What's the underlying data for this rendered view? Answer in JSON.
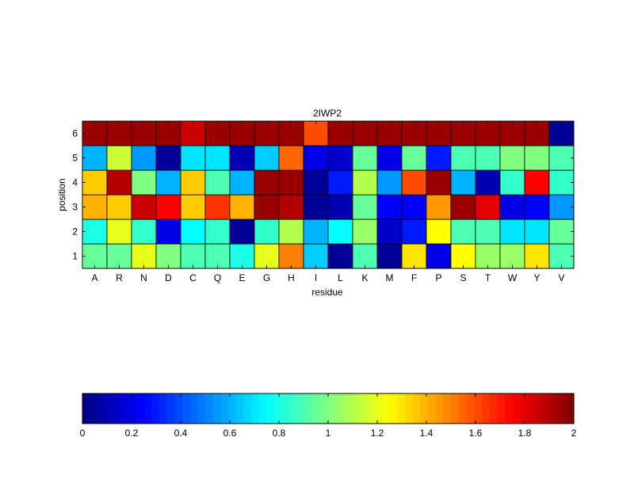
{
  "chart_data": {
    "type": "heatmap",
    "title": "2IWP2",
    "xlabel": "residue",
    "ylabel": "position",
    "x_categories": [
      "A",
      "R",
      "N",
      "D",
      "C",
      "Q",
      "E",
      "G",
      "H",
      "I",
      "L",
      "K",
      "M",
      "F",
      "P",
      "S",
      "T",
      "W",
      "Y",
      "V"
    ],
    "y_categories": [
      "1",
      "2",
      "3",
      "4",
      "5",
      "6"
    ],
    "colormap": "jet",
    "clim": [
      0,
      2
    ],
    "grid": true,
    "values": [
      [
        0.95,
        0.95,
        1.2,
        1.0,
        0.9,
        0.9,
        0.8,
        1.2,
        1.5,
        0.65,
        0.05,
        0.9,
        0.05,
        1.3,
        0.2,
        1.25,
        1.05,
        1.05,
        1.3,
        0.9
      ],
      [
        0.8,
        1.2,
        0.85,
        0.2,
        0.75,
        0.85,
        0.05,
        0.85,
        1.1,
        0.6,
        0.75,
        1.05,
        0.15,
        0.3,
        1.25,
        0.9,
        0.9,
        0.7,
        0.7,
        0.95
      ],
      [
        1.4,
        1.35,
        1.85,
        1.75,
        1.35,
        1.65,
        1.4,
        1.95,
        1.9,
        0.05,
        0.1,
        0.95,
        0.25,
        0.25,
        1.45,
        1.95,
        1.8,
        0.2,
        0.25,
        0.55
      ],
      [
        1.35,
        1.9,
        1.0,
        0.6,
        1.35,
        0.9,
        0.6,
        1.95,
        1.95,
        0.05,
        0.3,
        1.1,
        0.55,
        1.6,
        1.95,
        0.6,
        0.1,
        0.85,
        1.75,
        0.85
      ],
      [
        0.6,
        1.15,
        0.55,
        0.05,
        0.7,
        0.7,
        0.1,
        0.65,
        1.55,
        0.2,
        0.15,
        0.95,
        0.2,
        0.95,
        0.3,
        0.9,
        0.9,
        1.0,
        1.0,
        0.9
      ],
      [
        1.95,
        1.95,
        1.95,
        1.95,
        1.85,
        1.95,
        1.95,
        1.95,
        1.95,
        1.6,
        1.95,
        1.95,
        1.95,
        1.95,
        1.95,
        1.95,
        1.95,
        1.95,
        1.95,
        0.05
      ]
    ],
    "colorbar": {
      "orientation": "horizontal",
      "ticks": [
        0,
        0.2,
        0.4,
        0.6,
        0.8,
        1,
        1.2,
        1.4,
        1.6,
        1.8,
        2
      ],
      "tick_labels": [
        "0",
        "0.2",
        "0.4",
        "0.6",
        "0.8",
        "1",
        "1.2",
        "1.4",
        "1.6",
        "1.8",
        "2"
      ]
    }
  }
}
